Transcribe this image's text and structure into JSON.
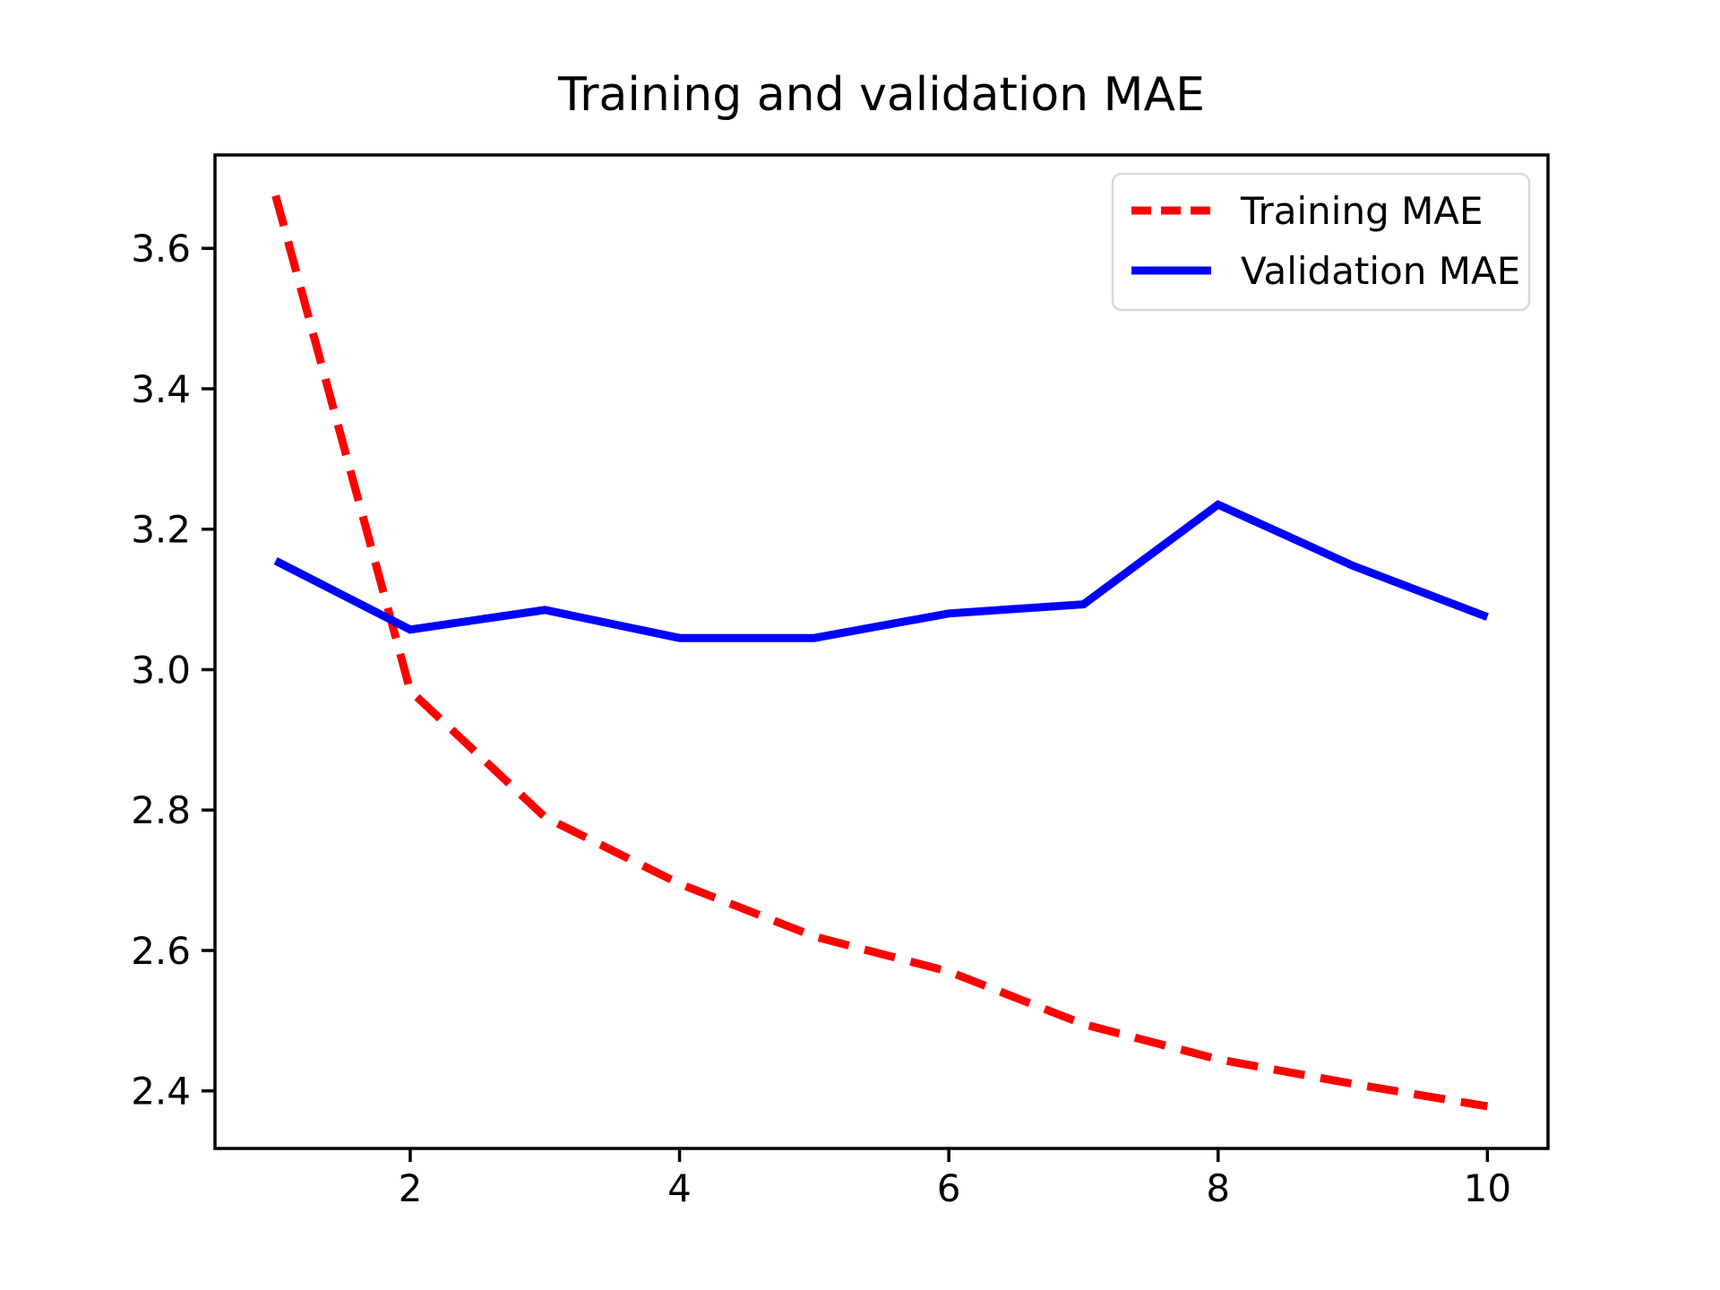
{
  "chart_data": {
    "type": "line",
    "title": "Training and validation MAE",
    "xlabel": "",
    "ylabel": "",
    "x": [
      1,
      2,
      3,
      4,
      5,
      6,
      7,
      8,
      9,
      10
    ],
    "series": [
      {
        "name": "Training MAE",
        "color": "#ff0000",
        "style": "dashed",
        "values": [
          3.675,
          2.97,
          2.79,
          2.695,
          2.62,
          2.57,
          2.495,
          2.445,
          2.41,
          2.378
        ]
      },
      {
        "name": "Validation MAE",
        "color": "#0000ff",
        "style": "solid",
        "values": [
          3.155,
          3.057,
          3.085,
          3.045,
          3.045,
          3.08,
          3.093,
          3.235,
          3.148,
          3.075
        ]
      }
    ],
    "xlim": [
      0.55,
      10.45
    ],
    "ylim": [
      2.318,
      3.733
    ],
    "xticks": [
      2,
      4,
      6,
      8,
      10
    ],
    "yticks": [
      2.4,
      2.6,
      2.8,
      3.0,
      3.2,
      3.4,
      3.6
    ],
    "grid": false,
    "legend_position": "upper right",
    "axis_color": "#000000",
    "background_color": "#ffffff"
  }
}
